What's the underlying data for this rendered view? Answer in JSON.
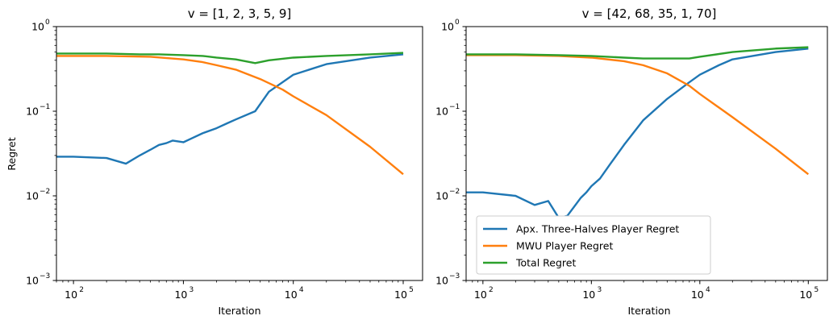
{
  "colors": {
    "series": [
      "#1f77b4",
      "#ff7f0e",
      "#2ca02c"
    ],
    "axis": "#000000",
    "background": "#ffffff"
  },
  "legend": {
    "placement": "lower-left",
    "items": [
      "Apx. Three-Halves Player Regret",
      "MWU Player Regret",
      "Total Regret"
    ]
  },
  "chart_data": [
    {
      "type": "line",
      "title": "v = [1, 2, 3, 5, 9]",
      "xlabel": "Iteration",
      "ylabel": "Regret",
      "xscale": "log",
      "yscale": "log",
      "xlim": [
        70,
        150000
      ],
      "ylim": [
        0.001,
        1
      ],
      "xticks": [
        {
          "value": 100,
          "exp": "2"
        },
        {
          "value": 1000,
          "exp": "3"
        },
        {
          "value": 10000,
          "exp": "4"
        },
        {
          "value": 100000,
          "exp": "5"
        }
      ],
      "yticks": [
        {
          "value": 0.001,
          "exp": "−3"
        },
        {
          "value": 0.01,
          "exp": "−2"
        },
        {
          "value": 0.1,
          "exp": "−1"
        },
        {
          "value": 1,
          "exp": "0"
        }
      ],
      "grid": false,
      "series": [
        {
          "name": "Apx. Three-Halves Player Regret",
          "x": [
            70,
            100,
            200,
            300,
            400,
            500,
            600,
            700,
            800,
            1000,
            1200,
            1500,
            2000,
            2500,
            3000,
            4500,
            6000,
            10000,
            20000,
            50000,
            100000
          ],
          "y": [
            0.029,
            0.029,
            0.028,
            0.024,
            0.03,
            0.035,
            0.04,
            0.042,
            0.045,
            0.043,
            0.048,
            0.055,
            0.063,
            0.072,
            0.08,
            0.1,
            0.17,
            0.27,
            0.36,
            0.43,
            0.47
          ]
        },
        {
          "name": "MWU Player Regret",
          "x": [
            70,
            100,
            200,
            500,
            1000,
            1500,
            2000,
            3000,
            5000,
            8000,
            10000,
            20000,
            50000,
            100000
          ],
          "y": [
            0.45,
            0.45,
            0.45,
            0.44,
            0.41,
            0.38,
            0.35,
            0.31,
            0.24,
            0.18,
            0.15,
            0.09,
            0.038,
            0.018
          ]
        },
        {
          "name": "Total Regret",
          "x": [
            70,
            100,
            200,
            400,
            600,
            1000,
            1500,
            2000,
            3000,
            4500,
            6000,
            10000,
            20000,
            50000,
            100000
          ],
          "y": [
            0.48,
            0.48,
            0.48,
            0.47,
            0.47,
            0.46,
            0.45,
            0.43,
            0.41,
            0.37,
            0.4,
            0.43,
            0.45,
            0.47,
            0.49
          ]
        }
      ]
    },
    {
      "type": "line",
      "title": "v = [42, 68, 35, 1, 70]",
      "xlabel": "Iteration",
      "ylabel": "",
      "xscale": "log",
      "yscale": "log",
      "xlim": [
        70,
        150000
      ],
      "ylim": [
        0.001,
        1
      ],
      "xticks": [
        {
          "value": 100,
          "exp": "2"
        },
        {
          "value": 1000,
          "exp": "3"
        },
        {
          "value": 10000,
          "exp": "4"
        },
        {
          "value": 100000,
          "exp": "5"
        }
      ],
      "yticks": [
        {
          "value": 0.001,
          "exp": "−3"
        },
        {
          "value": 0.01,
          "exp": "−2"
        },
        {
          "value": 0.1,
          "exp": "−1"
        },
        {
          "value": 1,
          "exp": "0"
        }
      ],
      "grid": false,
      "series": [
        {
          "name": "Apx. Three-Halves Player Regret",
          "x": [
            70,
            100,
            200,
            300,
            400,
            500,
            600,
            800,
            900,
            1000,
            1200,
            1500,
            2000,
            3000,
            5000,
            8000,
            10000,
            15000,
            20000,
            50000,
            100000
          ],
          "y": [
            0.011,
            0.011,
            0.01,
            0.0078,
            0.0087,
            0.0055,
            0.0058,
            0.0095,
            0.011,
            0.013,
            0.016,
            0.024,
            0.04,
            0.078,
            0.14,
            0.22,
            0.27,
            0.35,
            0.41,
            0.5,
            0.55
          ]
        },
        {
          "name": "MWU Player Regret",
          "x": [
            70,
            100,
            200,
            500,
            1000,
            2000,
            3000,
            5000,
            8000,
            10000,
            20000,
            50000,
            100000
          ],
          "y": [
            0.46,
            0.46,
            0.46,
            0.45,
            0.43,
            0.39,
            0.35,
            0.28,
            0.2,
            0.16,
            0.085,
            0.036,
            0.018
          ]
        },
        {
          "name": "Total Regret",
          "x": [
            70,
            100,
            200,
            500,
            1000,
            2000,
            3000,
            5000,
            8000,
            10000,
            20000,
            50000,
            100000
          ],
          "y": [
            0.47,
            0.47,
            0.47,
            0.46,
            0.45,
            0.43,
            0.42,
            0.42,
            0.42,
            0.44,
            0.5,
            0.55,
            0.57
          ]
        }
      ]
    }
  ]
}
